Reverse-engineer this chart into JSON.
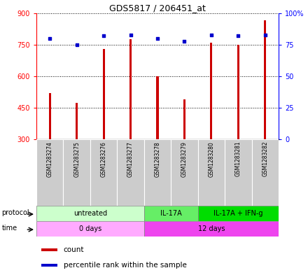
{
  "title": "GDS5817 / 206451_at",
  "samples": [
    "GSM1283274",
    "GSM1283275",
    "GSM1283276",
    "GSM1283277",
    "GSM1283278",
    "GSM1283279",
    "GSM1283280",
    "GSM1283281",
    "GSM1283282"
  ],
  "counts": [
    520,
    475,
    730,
    775,
    600,
    490,
    760,
    750,
    865
  ],
  "percentile_ranks": [
    80,
    75,
    82,
    83,
    80,
    78,
    83,
    82,
    83
  ],
  "ylim_left": [
    300,
    900
  ],
  "ylim_right": [
    0,
    100
  ],
  "yticks_left": [
    300,
    450,
    600,
    750,
    900
  ],
  "ytick_labels_left": [
    "300",
    "450",
    "600",
    "750",
    "900"
  ],
  "yticks_right": [
    0,
    25,
    50,
    75,
    100
  ],
  "ytick_labels_right": [
    "0",
    "25",
    "50",
    "75",
    "100%"
  ],
  "bar_color": "#cc0000",
  "dot_color": "#0000cc",
  "protocol_groups": [
    {
      "label": "untreated",
      "start": 0,
      "end": 4,
      "color": "#ccffcc"
    },
    {
      "label": "IL-17A",
      "start": 4,
      "end": 6,
      "color": "#66ee66"
    },
    {
      "label": "IL-17A + IFN-g",
      "start": 6,
      "end": 9,
      "color": "#00dd00"
    }
  ],
  "time_groups": [
    {
      "label": "0 days",
      "start": 0,
      "end": 4,
      "color": "#ffaaff"
    },
    {
      "label": "12 days",
      "start": 4,
      "end": 9,
      "color": "#ee44ee"
    }
  ],
  "sample_bg": "#cccccc",
  "legend_items": [
    {
      "label": "count",
      "color": "#cc0000"
    },
    {
      "label": "percentile rank within the sample",
      "color": "#0000cc"
    }
  ]
}
